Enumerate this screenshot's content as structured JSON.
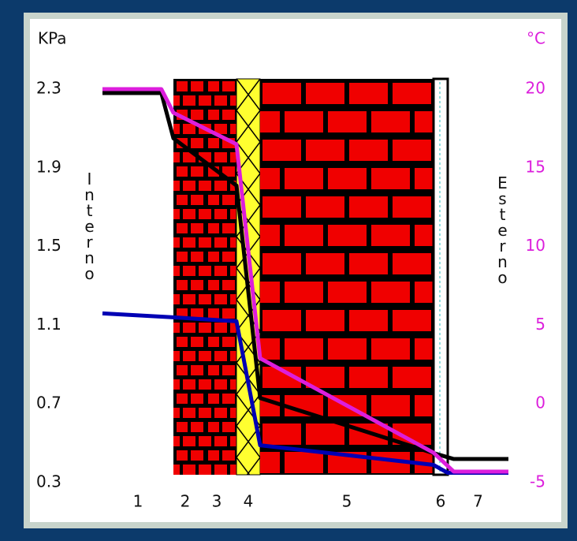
{
  "chart_data": {
    "type": "line",
    "ylabel": "KPa",
    "y2label": "°C",
    "ylim": [
      0.3,
      2.3
    ],
    "yticks": [
      2.3,
      1.9,
      1.5,
      1.1,
      0.7,
      0.3
    ],
    "y2lim": [
      -5,
      20
    ],
    "y2ticks": [
      20,
      15,
      10,
      5,
      0,
      -5
    ],
    "categories": [
      "1",
      "2",
      "3",
      "4",
      "5",
      "6",
      "7"
    ],
    "xlim": [
      0,
      7
    ],
    "annotations": [
      "Interno",
      "Esterno"
    ],
    "series": [
      {
        "color": "#000000",
        "x": [
          0,
          0.83,
          1,
          3,
          4,
          5,
          6.1,
          7
        ],
        "values": [
          2.28,
          2.28,
          2.05,
          1.81,
          0.73,
          0.45,
          0.42,
          0.42
        ]
      },
      {
        "color": "#0000b4",
        "x": [
          0,
          1,
          3,
          4,
          5,
          6,
          7
        ],
        "values": [
          1.16,
          1.14,
          1.12,
          0.49,
          0.39,
          0.35,
          0.35
        ]
      },
      {
        "color": "#dc1edc",
        "axis": "y2",
        "x": [
          0,
          0.83,
          1,
          3,
          4,
          5,
          6.1,
          7
        ],
        "values": [
          20,
          20,
          18.5,
          16.5,
          2.9,
          -3.1,
          -4.3,
          -4.3
        ]
      }
    ]
  }
}
